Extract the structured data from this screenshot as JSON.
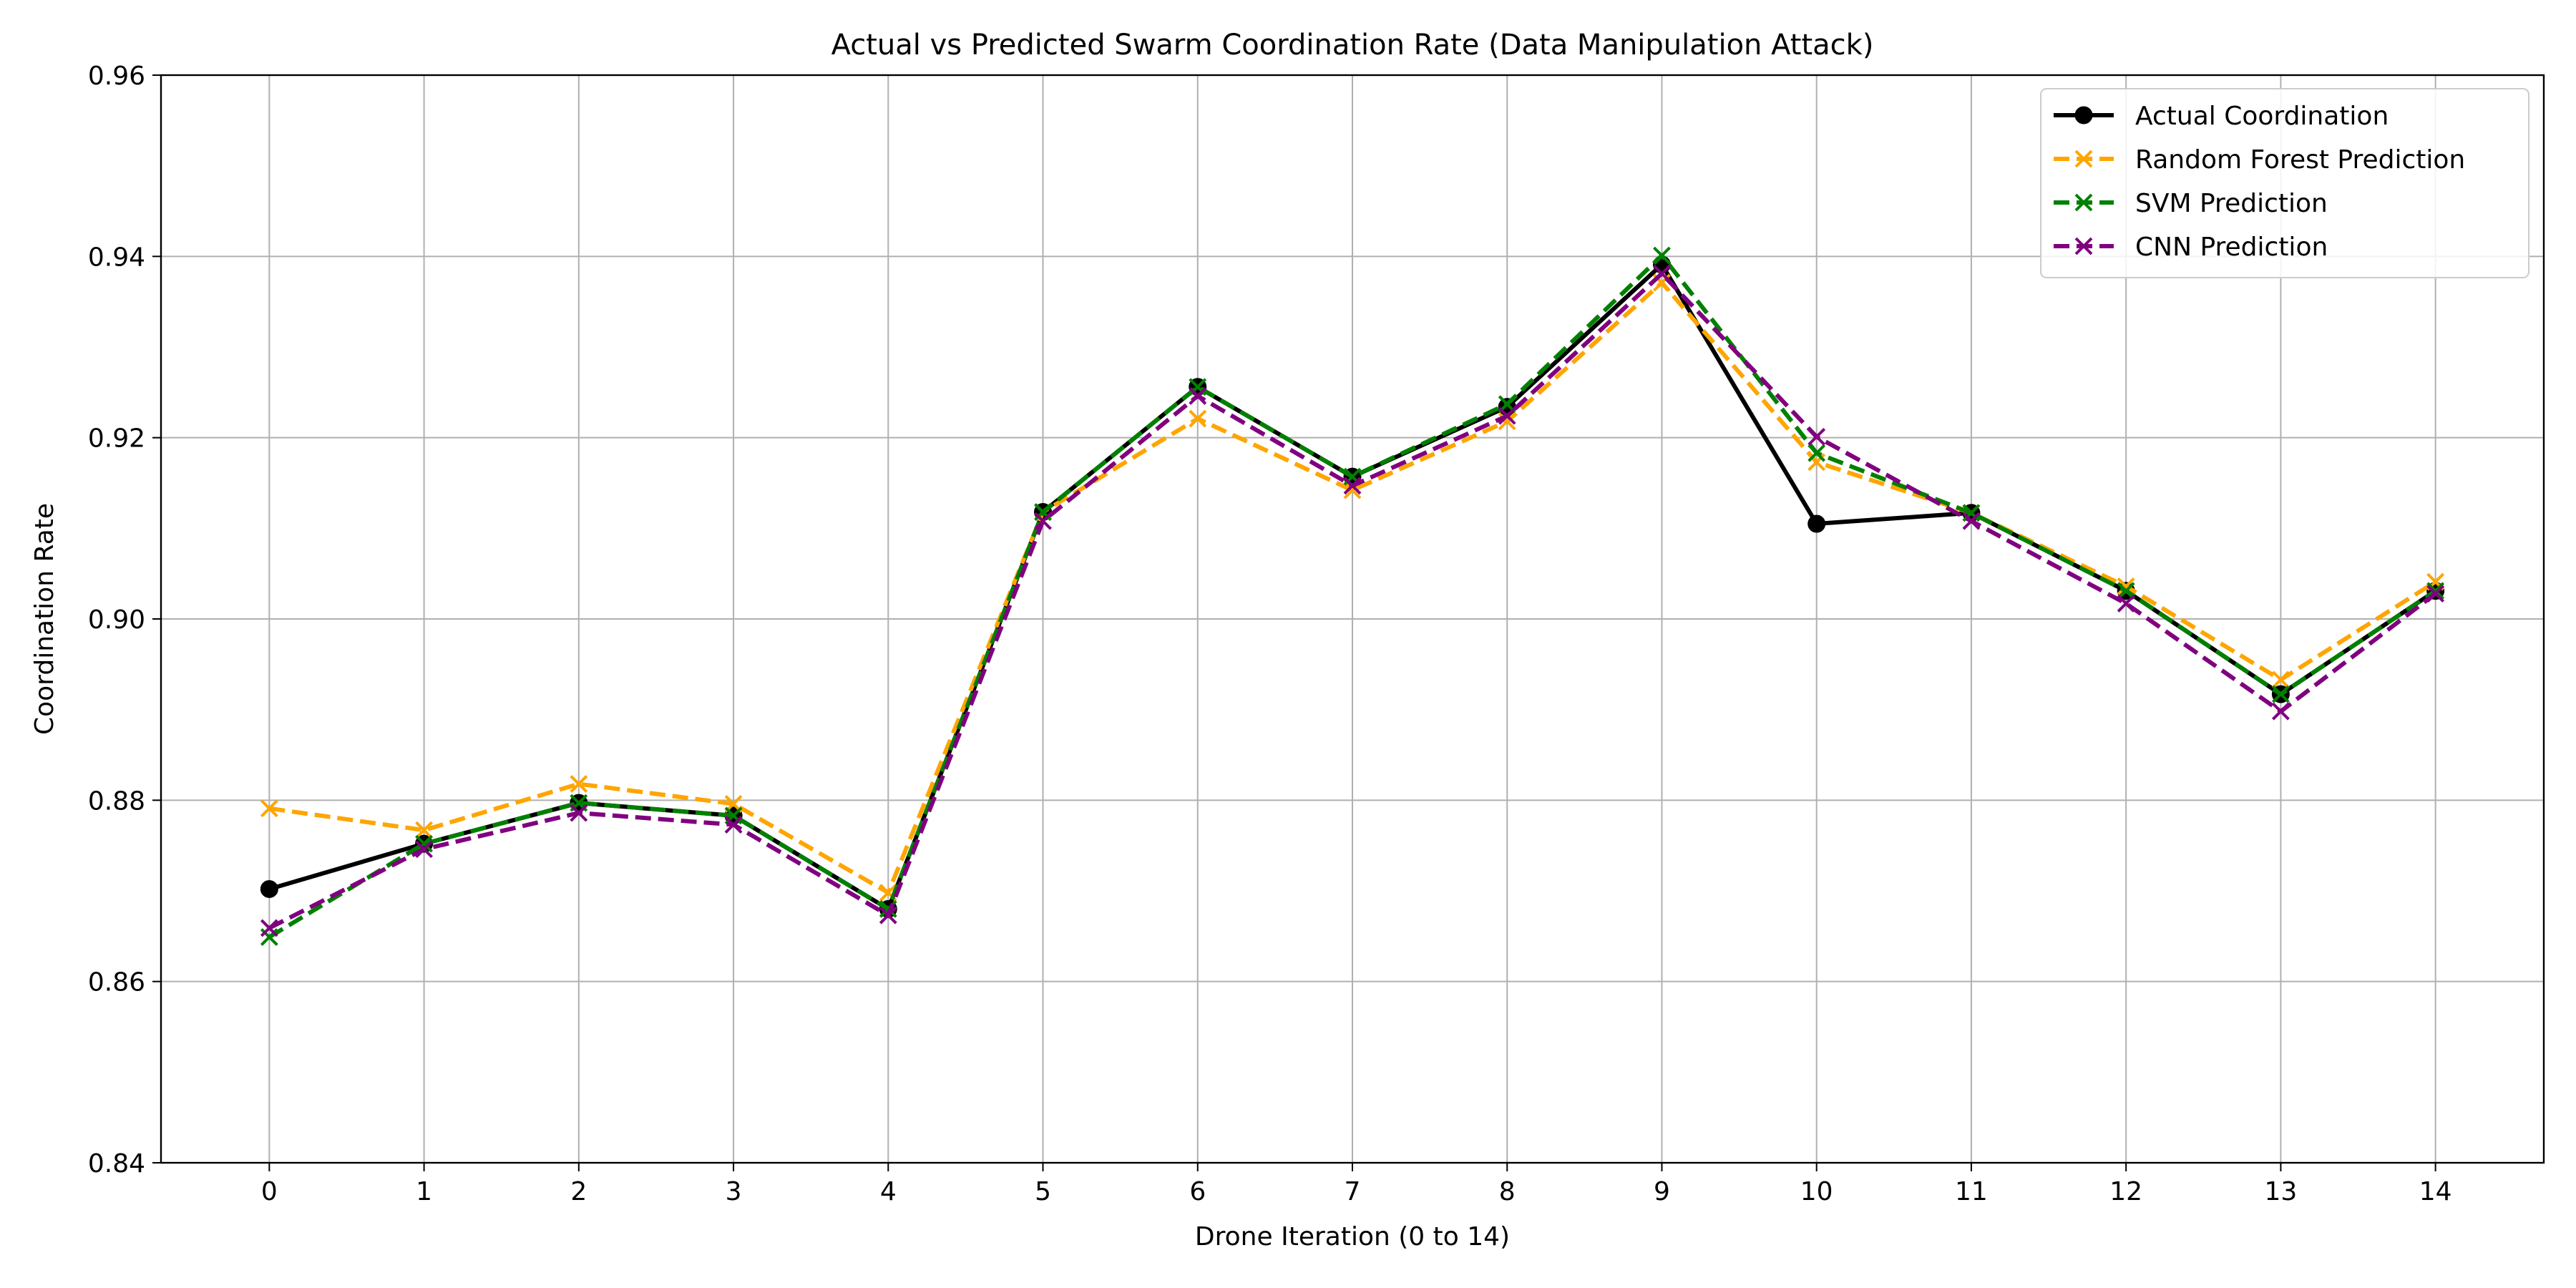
{
  "chart_data": {
    "type": "line",
    "title": "Actual vs Predicted Swarm Coordination Rate (Data Manipulation Attack)",
    "xlabel": "Drone Iteration (0 to 14)",
    "ylabel": "Coordination Rate",
    "x": [
      0,
      1,
      2,
      3,
      4,
      5,
      6,
      7,
      8,
      9,
      10,
      11,
      12,
      13,
      14
    ],
    "xlim": [
      -0.7,
      14.7
    ],
    "ylim": [
      0.84,
      0.96
    ],
    "xticks": [
      "0",
      "1",
      "2",
      "3",
      "4",
      "5",
      "6",
      "7",
      "8",
      "9",
      "10",
      "11",
      "12",
      "13",
      "14"
    ],
    "yticks": [
      "0.84",
      "0.86",
      "0.88",
      "0.90",
      "0.92",
      "0.94",
      "0.96"
    ],
    "grid": true,
    "legend_position": "top-right",
    "series": [
      {
        "name": "Actual Coordination",
        "color": "#000000",
        "style": "solid",
        "marker": "circle",
        "values": [
          0.8702,
          0.8752,
          0.8797,
          0.8783,
          0.868,
          0.9118,
          0.9256,
          0.9157,
          0.9234,
          0.9391,
          0.9105,
          0.9117,
          0.9031,
          0.8917,
          0.9031
        ]
      },
      {
        "name": "Random Forest Prediction",
        "color": "#ffa500",
        "style": "dashed",
        "marker": "x",
        "values": [
          0.8791,
          0.8767,
          0.8818,
          0.8796,
          0.8698,
          0.9118,
          0.9221,
          0.9142,
          0.9218,
          0.9371,
          0.9173,
          0.9117,
          0.9036,
          0.8933,
          0.9041
        ]
      },
      {
        "name": "SVM Prediction",
        "color": "#008000",
        "style": "dashed",
        "marker": "x",
        "values": [
          0.8649,
          0.8752,
          0.8797,
          0.8783,
          0.868,
          0.9118,
          0.9256,
          0.9157,
          0.9237,
          0.9401,
          0.9183,
          0.9117,
          0.9031,
          0.8917,
          0.9031
        ]
      },
      {
        "name": "CNN Prediction",
        "color": "#800080",
        "style": "dashed",
        "marker": "x",
        "values": [
          0.8659,
          0.8746,
          0.8786,
          0.8773,
          0.8673,
          0.9108,
          0.9246,
          0.9147,
          0.9224,
          0.9381,
          0.9201,
          0.9108,
          0.9017,
          0.8898,
          0.9028
        ]
      }
    ]
  }
}
